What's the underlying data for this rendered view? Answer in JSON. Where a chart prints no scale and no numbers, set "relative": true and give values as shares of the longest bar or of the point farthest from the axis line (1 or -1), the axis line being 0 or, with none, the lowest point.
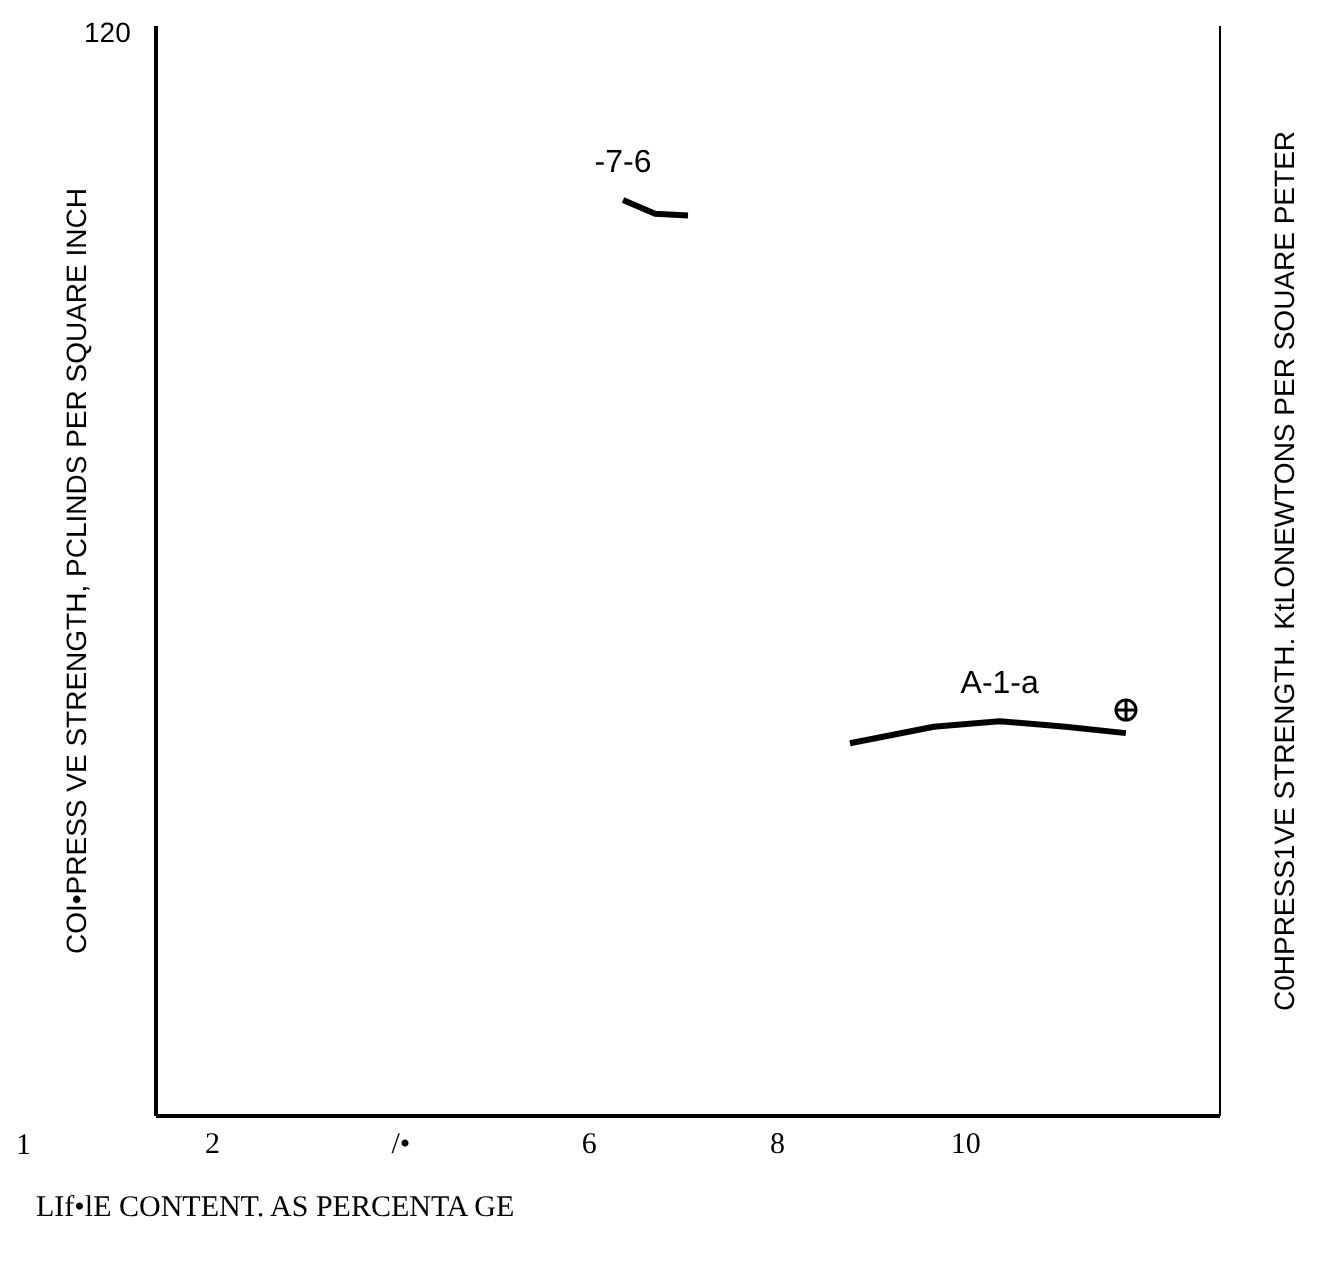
{
  "chart_data": {
    "type": "line",
    "relative": true,
    "xlabel": "LIf•lE CONTENT. AS PERCENTA GE",
    "ylabel": "COI•PRESS VE STRENGTH, PCLINDS PER SQUARE INCH",
    "y2label": "C0HPRESS1VE STRENGTH. KtLONEWTONS PER SOUARE PETER",
    "annotations": [
      "120",
      "1"
    ],
    "xlim": [
      1.4,
      12.7
    ],
    "xticks": [
      2,
      {
        "value": 4,
        "label": "/•"
      },
      6,
      8,
      10
    ],
    "grid": false,
    "legend": false,
    "marker": "none",
    "line_style": "solid",
    "series": [
      {
        "name": "-7-6",
        "color": "#000000",
        "x": [
          6.36,
          6.7,
          7.05
        ],
        "values": [
          1,
          0.985,
          0.983
        ]
      },
      {
        "name": "A-1-a",
        "color": "#000000",
        "x": [
          8.77,
          9.66,
          10.36,
          11.06,
          11.7
        ],
        "values": [
          0.407,
          0.425,
          0.431,
          0.425,
          0.418
        ]
      }
    ]
  }
}
